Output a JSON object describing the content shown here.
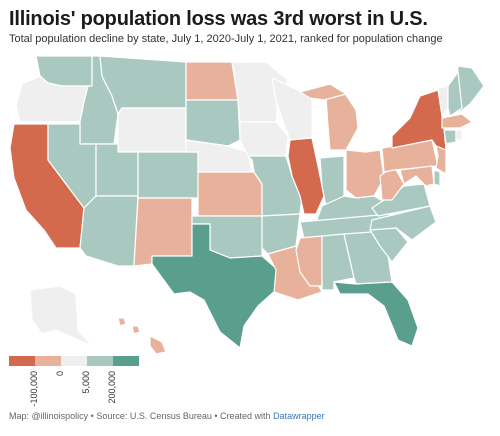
{
  "title": "Illinois' population loss was 3rd worst in U.S.",
  "subtitle": "Total population decline by state, July 1, 2020-July 1, 2021, ranked for population change",
  "legend": {
    "colors": [
      "#d3694d",
      "#e8b19b",
      "#efefef",
      "#a9c9c0",
      "#5a9e8e"
    ],
    "ticks": [
      "-100,000",
      "0",
      "5,000",
      "200,000"
    ]
  },
  "footer": {
    "text": "Map: @illinoispolicy • Source: U.S. Census Bureau • Created with ",
    "link": "Datawrapper"
  },
  "states": {
    "WA": "teal-light",
    "OR": "gray",
    "CA": "red",
    "ID": "teal-light",
    "NV": "teal-light",
    "MT": "teal-light",
    "WY": "gray",
    "UT": "teal-light",
    "AZ": "teal-light",
    "CO": "teal-light",
    "NM": "salmon",
    "ND": "salmon",
    "SD": "teal-light",
    "NE": "gray",
    "KS": "salmon",
    "OK": "teal-light",
    "TX": "teal-dark",
    "MN": "gray",
    "IA": "gray",
    "MO": "teal-light",
    "AR": "teal-light",
    "LA": "salmon",
    "WI": "gray",
    "IL": "red",
    "MI": "salmon",
    "IN": "teal-light",
    "OH": "salmon",
    "KY": "teal-light",
    "TN": "teal-light",
    "MS": "salmon",
    "AL": "teal-light",
    "GA": "teal-light",
    "FL": "teal-dark",
    "SC": "teal-light",
    "NC": "teal-light",
    "VA": "teal-light",
    "WV": "salmon",
    "PA": "salmon",
    "NY": "red",
    "ME": "teal-light",
    "VT": "gray",
    "NH": "teal-light",
    "MA": "salmon",
    "CT": "teal-light",
    "RI": "gray",
    "NJ": "salmon",
    "DE": "teal-light",
    "MD": "salmon",
    "AK": "gray",
    "HI": "salmon"
  }
}
